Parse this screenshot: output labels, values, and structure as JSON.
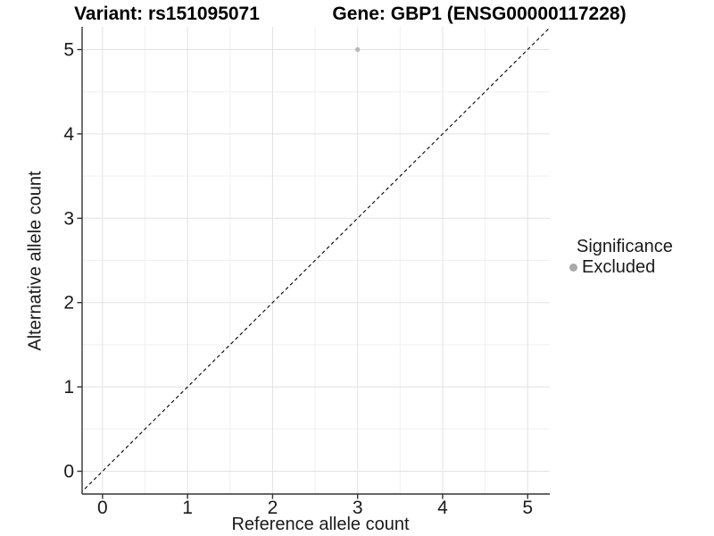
{
  "chart_data": {
    "type": "scatter",
    "titles": [
      "Variant: rs151095071",
      "Gene: GBP1 (ENSG00000117228)"
    ],
    "xlabel": "Reference allele count",
    "ylabel": "Alternative allele count",
    "xlim": [
      -0.24,
      5.26
    ],
    "ylim": [
      -0.27,
      5.27
    ],
    "x_ticks": [
      0,
      1,
      2,
      3,
      4,
      5
    ],
    "y_ticks": [
      0,
      1,
      2,
      3,
      4,
      5
    ],
    "x_minor": [
      0.5,
      1.5,
      2.5,
      3.5,
      4.5
    ],
    "y_minor": [
      0.5,
      1.5,
      2.5,
      3.5,
      4.5
    ],
    "grid": "major+minor",
    "reference_line": {
      "type": "identity",
      "style": "dashed",
      "color": "#000000"
    },
    "series": [
      {
        "name": "Excluded",
        "color": "#b9b9b9",
        "point_radius": 2.7,
        "points": [
          [
            3,
            5
          ]
        ]
      }
    ],
    "legend": {
      "title": "Significance",
      "position": "right",
      "items": [
        {
          "label": "Excluded",
          "color": "#a9a9a9"
        }
      ]
    },
    "colors": {
      "background": "#ffffff",
      "grid_major": "#e2e2e2",
      "grid_minor": "#f0f0f0",
      "axis_line": "#333333",
      "tick_text": "#1a1a1a"
    }
  }
}
